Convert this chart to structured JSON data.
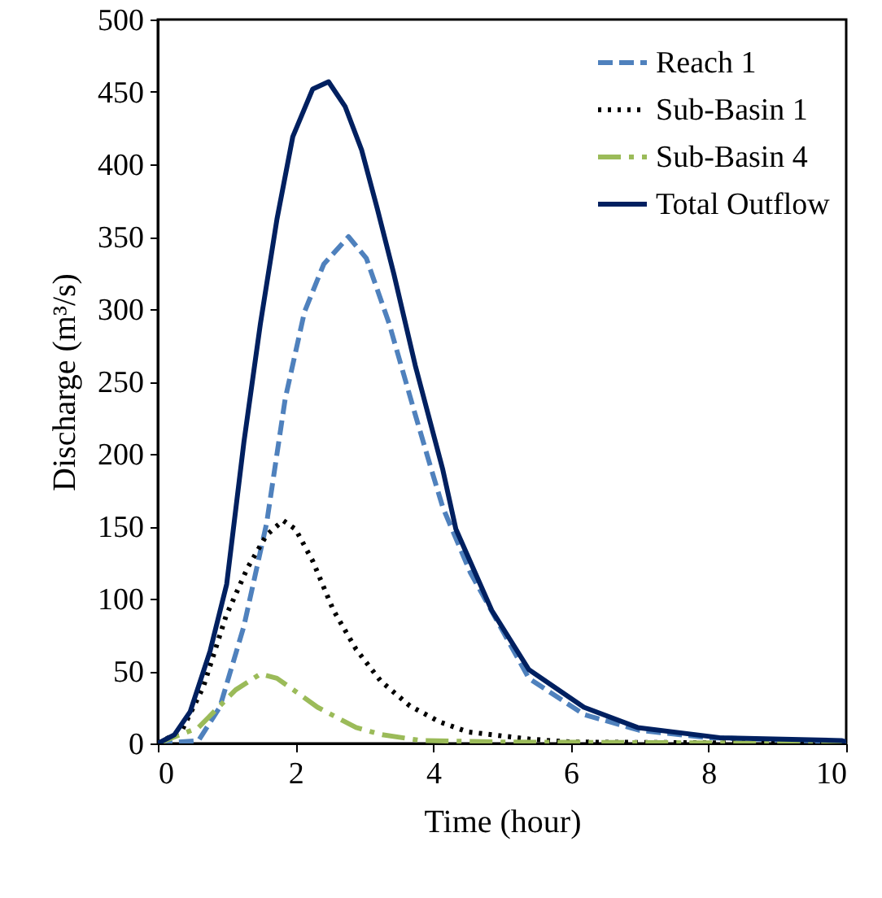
{
  "chart_data": {
    "type": "line",
    "xlabel": "Time (hour)",
    "ylabel": "Discharge (m³/s)",
    "xlim": [
      0,
      10
    ],
    "ylim": [
      0,
      500
    ],
    "xticks": [
      0,
      2,
      4,
      6,
      8,
      10
    ],
    "yticks": [
      0,
      50,
      100,
      150,
      200,
      250,
      300,
      350,
      400,
      450,
      500
    ],
    "grid": false,
    "legend": "top right",
    "marker": "none",
    "series": [
      {
        "name": "Reach 1",
        "color": "#4f81bd",
        "line_style": "dashed",
        "x": [
          0,
          0.59,
          0.9,
          1.25,
          1.58,
          1.85,
          2.13,
          2.41,
          2.77,
          3.03,
          3.36,
          3.74,
          3.95,
          4.14,
          4.54,
          5.39,
          6.19,
          7,
          8,
          10
        ],
        "values": [
          0,
          2,
          25,
          81,
          152,
          238,
          298,
          331,
          350,
          335,
          290,
          227,
          193,
          163,
          118,
          45,
          20,
          9,
          4,
          1
        ]
      },
      {
        "name": "Sub-Basin 1",
        "color": "#000000",
        "line_style": "dotted",
        "x": [
          0,
          0.35,
          0.66,
          0.99,
          1.3,
          1.58,
          1.82,
          2.0,
          2.25,
          2.55,
          2.88,
          3.24,
          3.66,
          4.09,
          4.5,
          5.4,
          6,
          10
        ],
        "values": [
          0,
          9,
          39,
          88,
          121,
          144,
          154,
          148,
          126,
          92,
          65,
          43,
          26,
          15,
          8,
          3,
          1,
          0
        ]
      },
      {
        "name": "Sub-Basin 4",
        "color": "#9bbb59",
        "line_style": "dashdot",
        "x": [
          0,
          0.59,
          1.13,
          1.49,
          1.73,
          2.0,
          2.32,
          2.88,
          3.26,
          3.83,
          5,
          10
        ],
        "values": [
          0,
          11,
          37,
          48,
          45,
          36,
          25,
          11,
          6,
          2,
          1,
          0
        ]
      },
      {
        "name": "Total Outflow",
        "color": "#002060",
        "line_style": "solid",
        "x": [
          0,
          0.24,
          0.47,
          0.76,
          1.0,
          1.25,
          1.49,
          1.73,
          1.96,
          2.25,
          2.48,
          2.72,
          2.96,
          3.19,
          3.43,
          3.74,
          4.14,
          4.33,
          4.85,
          5.39,
          6.19,
          6.97,
          8.16,
          9.93,
          10
        ],
        "values": [
          0,
          6,
          22,
          64,
          110,
          208,
          290,
          362,
          419,
          452,
          457,
          440,
          410,
          369,
          324,
          261,
          189,
          148,
          92,
          51,
          25,
          11,
          4,
          2,
          1
        ]
      }
    ]
  }
}
